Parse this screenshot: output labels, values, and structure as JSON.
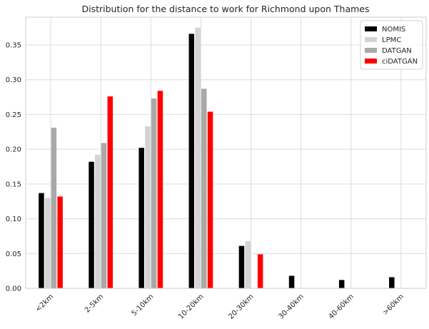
{
  "chart_data": {
    "type": "bar",
    "title": "Distribution for the distance to work for Richmond upon Thames",
    "xlabel": "",
    "ylabel": "",
    "ylim": [
      0,
      0.39
    ],
    "yticks": [
      0.0,
      0.05,
      0.1,
      0.15,
      0.2,
      0.25,
      0.3,
      0.35
    ],
    "ytick_labels": [
      "0.00",
      "0.05",
      "0.10",
      "0.15",
      "0.20",
      "0.25",
      "0.30",
      "0.35"
    ],
    "grid": true,
    "legend_position": "top-right",
    "categories": [
      "<2km",
      "2-5km",
      "5-10km",
      "10-20km",
      "20-30km",
      "30-40km",
      "40-60km",
      ">60km"
    ],
    "series": [
      {
        "name": "NOMIS",
        "color": "#000000",
        "values": [
          0.137,
          0.182,
          0.202,
          0.366,
          0.061,
          0.018,
          0.012,
          0.016
        ]
      },
      {
        "name": "LPMC",
        "color": "#d3d3d3",
        "values": [
          0.13,
          0.192,
          0.233,
          0.375,
          0.068,
          0.0,
          0.0,
          0.0
        ]
      },
      {
        "name": "DATGAN",
        "color": "#a9a9a9",
        "values": [
          0.231,
          0.209,
          0.273,
          0.287,
          0.0,
          0.0,
          0.0,
          0.0
        ]
      },
      {
        "name": "ciDATGAN",
        "color": "#ff0000",
        "values": [
          0.132,
          0.276,
          0.284,
          0.254,
          0.049,
          0.0,
          0.0,
          0.0
        ]
      }
    ]
  }
}
